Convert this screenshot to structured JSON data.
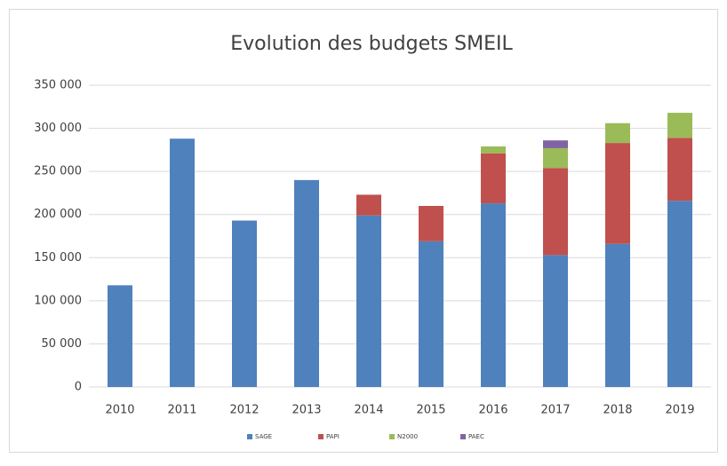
{
  "chart_data": {
    "type": "stacked_bar",
    "title": "Evolution des budgets SMEIL",
    "categories": [
      "2010",
      "2011",
      "2012",
      "2013",
      "2014",
      "2015",
      "2016",
      "2017",
      "2018",
      "2019"
    ],
    "series": [
      {
        "name": "SAGE",
        "color": "#4f81bd",
        "values": [
          118000,
          288000,
          193000,
          240000,
          199000,
          169000,
          213000,
          153000,
          166000,
          216000
        ]
      },
      {
        "name": "PAPI",
        "color": "#c0504d",
        "values": [
          null,
          null,
          null,
          null,
          24000,
          41000,
          58000,
          101000,
          117000,
          73000
        ]
      },
      {
        "name": "N2000",
        "color": "#9bbb59",
        "values": [
          null,
          null,
          null,
          null,
          null,
          null,
          8000,
          23000,
          23000,
          29000
        ]
      },
      {
        "name": "PAEC",
        "color": "#8064a2",
        "values": [
          null,
          null,
          null,
          null,
          null,
          null,
          null,
          9000,
          null,
          null
        ]
      }
    ],
    "ylim": [
      0,
      350000
    ],
    "yticks": [
      0,
      {
        "value": 50000,
        "label": "50 000"
      },
      {
        "value": 100000,
        "label": "100 000"
      },
      {
        "value": 150000,
        "label": "150 000"
      },
      {
        "value": 200000,
        "label": "200 000"
      },
      {
        "value": 250000,
        "label": "250 000"
      },
      {
        "value": 300000,
        "label": "300 000"
      },
      {
        "value": 350000,
        "label": "350 000"
      }
    ],
    "grid": true,
    "legend": "bottom"
  }
}
